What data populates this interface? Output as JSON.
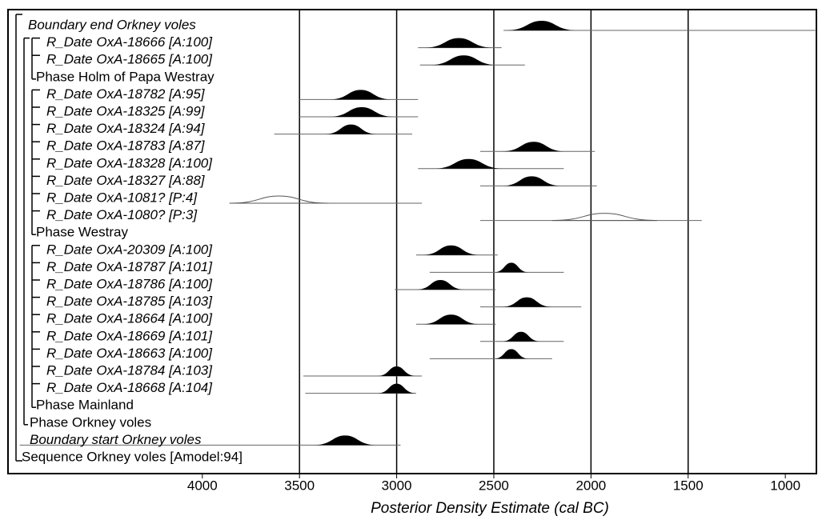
{
  "chart_data": {
    "type": "oxcal",
    "xlabel": "Posterior Density Estimate (cal BC)",
    "xlim": [
      5000,
      840
    ],
    "xticks": [
      4000,
      3500,
      3000,
      2500,
      2000,
      1500,
      1000
    ],
    "gridlines": [
      3500,
      3000,
      2500,
      2000,
      1500
    ],
    "rows": [
      {
        "label": "Boundary end Orkney voles",
        "range": [
          2450,
          840
        ],
        "posterior": [
          2440,
          2070
        ]
      },
      {
        "label": "R_Date OxA-18666 [A:100]",
        "range": [
          2890,
          2460
        ],
        "posterior": [
          2860,
          2500
        ]
      },
      {
        "label": "R_Date OxA-18665 [A:100]",
        "range": [
          2880,
          2340
        ],
        "posterior": [
          2830,
          2480
        ]
      },
      {
        "label": "Phase Holm of Papa Westray"
      },
      {
        "label": "R_Date OxA-18782 [A:95]",
        "range": [
          3500,
          2890
        ],
        "posterior": [
          3350,
          3020
        ]
      },
      {
        "label": "R_Date OxA-18325 [A:99]",
        "range": [
          3500,
          2890
        ],
        "posterior": [
          3350,
          3010
        ]
      },
      {
        "label": "R_Date OxA-18324 [A:94]",
        "range": [
          3630,
          2920
        ],
        "posterior": [
          3370,
          3100
        ]
      },
      {
        "label": "R_Date OxA-18783 [A:87]",
        "range": [
          2570,
          1980
        ],
        "posterior": [
          2460,
          2130
        ]
      },
      {
        "label": "R_Date OxA-18328 [A:100]",
        "range": [
          2890,
          2140
        ],
        "posterior": [
          2810,
          2450
        ]
      },
      {
        "label": "R_Date OxA-18327 [A:88]",
        "range": [
          2570,
          1970
        ],
        "posterior": [
          2460,
          2150
        ]
      },
      {
        "label": "R_Date OxA-1081? [P:4]",
        "range": [
          3860,
          2870
        ],
        "prior": [
          3860,
          3350
        ]
      },
      {
        "label": "R_Date OxA-1080? [P:3]",
        "range": [
          2570,
          1430
        ],
        "prior": [
          2200,
          1660
        ]
      },
      {
        "label": "Phase Westray"
      },
      {
        "label": "R_Date OxA-20309 [A:100]",
        "range": [
          2900,
          2480
        ],
        "posterior": [
          2870,
          2570
        ]
      },
      {
        "label": "R_Date OxA-18787 [A:101]",
        "range": [
          2830,
          2140
        ],
        "posterior": [
          2500,
          2320
        ]
      },
      {
        "label": "R_Date OxA-18786 [A:100]",
        "range": [
          3010,
          2490
        ],
        "posterior": [
          2900,
          2650
        ]
      },
      {
        "label": "R_Date OxA-18785 [A:103]",
        "range": [
          2570,
          2050
        ],
        "posterior": [
          2460,
          2200
        ]
      },
      {
        "label": "R_Date OxA-18664 [A:100]",
        "range": [
          2900,
          2490
        ],
        "posterior": [
          2870,
          2570
        ]
      },
      {
        "label": "R_Date OxA-18669 [A:101]",
        "range": [
          2570,
          2140
        ],
        "posterior": [
          2460,
          2260
        ]
      },
      {
        "label": "R_Date OxA-18663 [A:100]",
        "range": [
          2830,
          2200
        ],
        "posterior": [
          2500,
          2320
        ]
      },
      {
        "label": "R_Date OxA-18784 [A:103]",
        "range": [
          3480,
          2870
        ],
        "posterior": [
          3100,
          2900
        ]
      },
      {
        "label": "R_Date OxA-18668 [A:104]",
        "range": [
          3470,
          2900
        ],
        "posterior": [
          3100,
          2900
        ]
      },
      {
        "label": "Phase Mainland"
      },
      {
        "label": "Phase Orkney voles"
      },
      {
        "label": "Boundary start Orkney voles",
        "range": [
          4940,
          2980
        ],
        "posterior": [
          3430,
          3100
        ]
      },
      {
        "label": "Sequence Orkney voles [Amodel:94]"
      }
    ]
  }
}
